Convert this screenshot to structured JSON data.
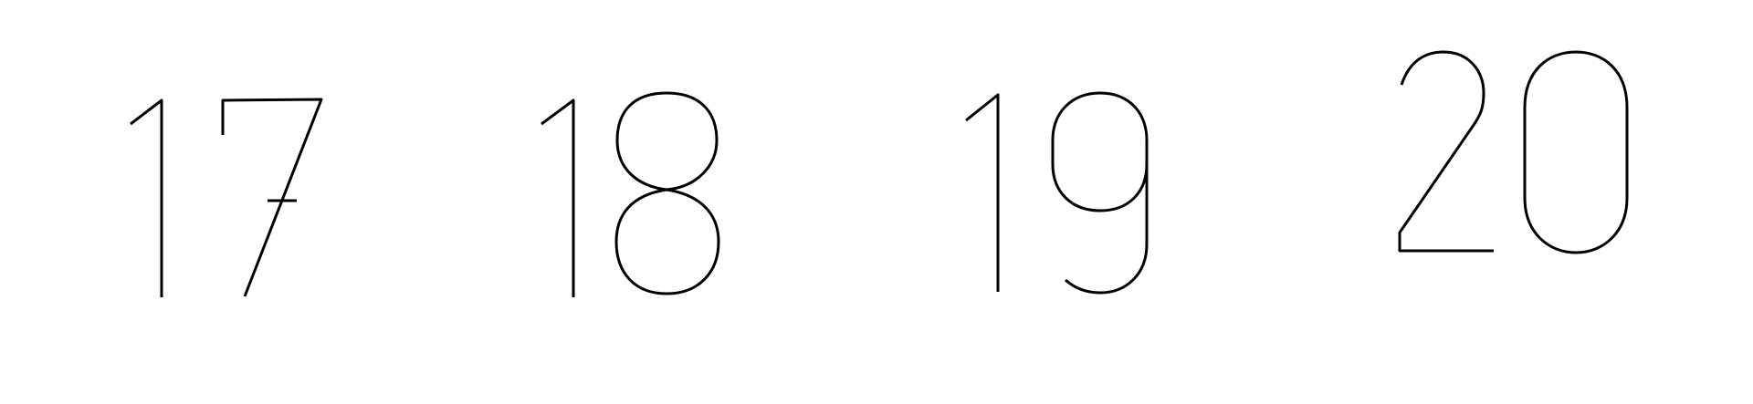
{
  "numbers": [
    {
      "value": "17"
    },
    {
      "value": "18"
    },
    {
      "value": "19"
    },
    {
      "value": "20"
    }
  ],
  "colors": {
    "background": "#ffffff",
    "stroke": "#000000"
  }
}
